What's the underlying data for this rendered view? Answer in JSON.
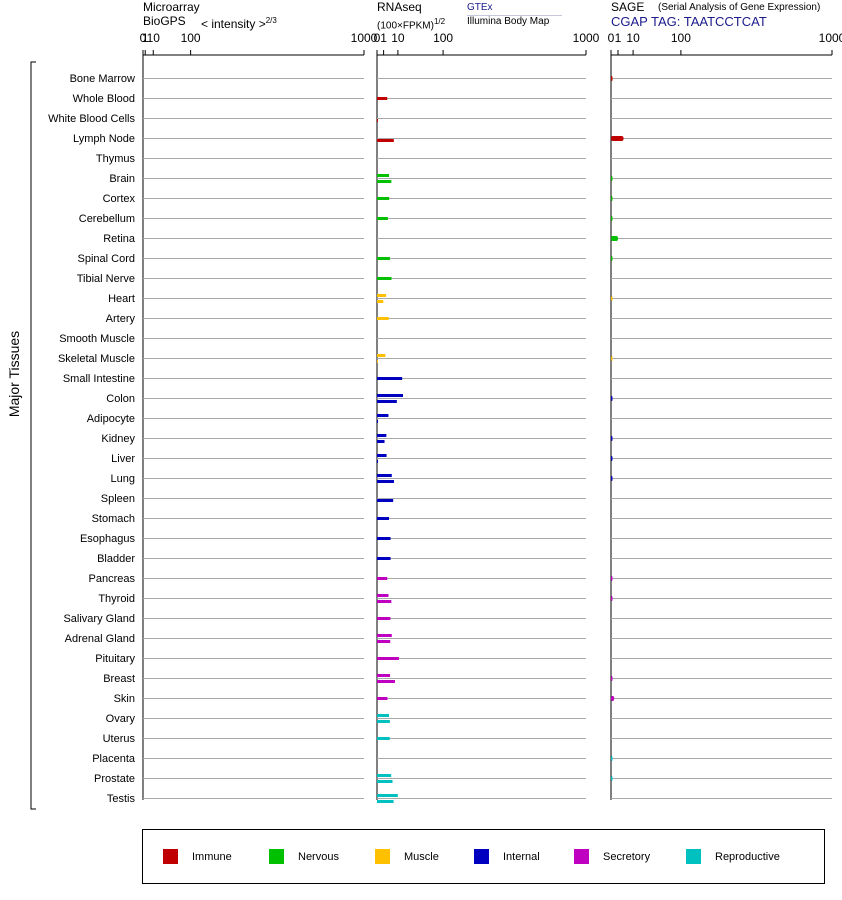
{
  "header": {
    "microarray": {
      "title": "Microarray",
      "source": "BioGPS",
      "unit": "< intensity >",
      "unit_exp": "2/3"
    },
    "rnaseq": {
      "title": "RNAseq",
      "unit": "(100×FPKM)",
      "unit_exp": "1/2",
      "source_primary": "GTEx",
      "source_secondary": "Illumina Body Map"
    },
    "sage": {
      "title": "SAGE",
      "subtitle": "(Serial Analysis of Gene Expression)",
      "tag": "CGAP TAG: TAATCCTCAT"
    }
  },
  "group_label": "Major Tissues",
  "colors": {
    "Immune": "#c00000",
    "Nervous": "#00c000",
    "Muscle": "#ffc000",
    "Internal": "#0000c0",
    "Secretory": "#c000c0",
    "Reproductive": "#00c0c0"
  },
  "legend": [
    {
      "label": "Immune",
      "color": "#c00000"
    },
    {
      "label": "Nervous",
      "color": "#00c000"
    },
    {
      "label": "Muscle",
      "color": "#ffc000"
    },
    {
      "label": "Internal",
      "color": "#0000c0"
    },
    {
      "label": "Secretory",
      "color": "#c000c0"
    },
    {
      "label": "Reproductive",
      "color": "#00c0c0"
    }
  ],
  "chart_data": {
    "type": "bar",
    "orientation": "horizontal",
    "scale": "power",
    "axes": {
      "microarray": {
        "ticks": [
          "0",
          "1",
          "10",
          "100",
          "1000"
        ],
        "xlim": [
          0,
          1000
        ],
        "exponent": 0.6667
      },
      "rnaseq": {
        "ticks": [
          "0",
          "1",
          "10",
          "100",
          "1000"
        ],
        "xlim": [
          0,
          1000
        ],
        "exponent": 0.5
      },
      "sage": {
        "ticks": [
          "0",
          "1",
          "10",
          "100",
          "1000"
        ],
        "xlim": [
          0,
          1000
        ],
        "exponent": 0.5
      }
    },
    "tissues": [
      {
        "name": "Bone Marrow",
        "system": "Immune",
        "rnaseq_gtex": null,
        "rnaseq_ibm": null,
        "sage": 0.02
      },
      {
        "name": "Whole Blood",
        "system": "Immune",
        "rnaseq_gtex": 2.4,
        "rnaseq_ibm": null,
        "sage": null
      },
      {
        "name": "White Blood Cells",
        "system": "Immune",
        "rnaseq_gtex": null,
        "rnaseq_ibm": 0.02,
        "sage": null
      },
      {
        "name": "Lymph Node",
        "system": "Immune",
        "rnaseq_gtex": null,
        "rnaseq_ibm": 6.5,
        "sage": 3.2
      },
      {
        "name": "Thymus",
        "system": "Immune",
        "rnaseq_gtex": null,
        "rnaseq_ibm": null,
        "sage": null
      },
      {
        "name": "Brain",
        "system": "Nervous",
        "rnaseq_gtex": 3.3,
        "rnaseq_ibm": 4.7,
        "sage": 0.02
      },
      {
        "name": "Cortex",
        "system": "Nervous",
        "rnaseq_gtex": 3.4,
        "rnaseq_ibm": null,
        "sage": 0.02
      },
      {
        "name": "Cerebellum",
        "system": "Nervous",
        "rnaseq_gtex": 2.7,
        "rnaseq_ibm": null,
        "sage": 0.02
      },
      {
        "name": "Retina",
        "system": "Nervous",
        "rnaseq_gtex": null,
        "rnaseq_ibm": null,
        "sage": 1.0
      },
      {
        "name": "Spinal Cord",
        "system": "Nervous",
        "rnaseq_gtex": 3.8,
        "rnaseq_ibm": null,
        "sage": 0.02
      },
      {
        "name": "Tibial Nerve",
        "system": "Nervous",
        "rnaseq_gtex": 4.8,
        "rnaseq_ibm": null,
        "sage": null
      },
      {
        "name": "Heart",
        "system": "Muscle",
        "rnaseq_gtex": 1.9,
        "rnaseq_ibm": 0.9,
        "sage": 0.01
      },
      {
        "name": "Artery",
        "system": "Muscle",
        "rnaseq_gtex": 3.1,
        "rnaseq_ibm": null,
        "sage": null
      },
      {
        "name": "Smooth Muscle",
        "system": "Muscle",
        "rnaseq_gtex": null,
        "rnaseq_ibm": null,
        "sage": null
      },
      {
        "name": "Skeletal Muscle",
        "system": "Muscle",
        "rnaseq_gtex": 1.6,
        "rnaseq_ibm": 0.01,
        "sage": 0.01
      },
      {
        "name": "Small Intestine",
        "system": "Internal",
        "rnaseq_gtex": 14.5,
        "rnaseq_ibm": null,
        "sage": null
      },
      {
        "name": "Colon",
        "system": "Internal",
        "rnaseq_gtex": 15.5,
        "rnaseq_ibm": 9.0,
        "sage": 0.04
      },
      {
        "name": "Adipocyte",
        "system": "Internal",
        "rnaseq_gtex": 3.0,
        "rnaseq_ibm": 0.02,
        "sage": null
      },
      {
        "name": "Kidney",
        "system": "Internal",
        "rnaseq_gtex": 2.0,
        "rnaseq_ibm": 1.3,
        "sage": 0.04
      },
      {
        "name": "Liver",
        "system": "Internal",
        "rnaseq_gtex": 2.1,
        "rnaseq_ibm": 0.02,
        "sage": 0.04
      },
      {
        "name": "Lung",
        "system": "Internal",
        "rnaseq_gtex": 5.0,
        "rnaseq_ibm": 6.6,
        "sage": 0.04
      },
      {
        "name": "Spleen",
        "system": "Internal",
        "rnaseq_gtex": null,
        "rnaseq_ibm": 6.0,
        "sage": null
      },
      {
        "name": "Stomach",
        "system": "Internal",
        "rnaseq_gtex": 3.3,
        "rnaseq_ibm": null,
        "sage": null
      },
      {
        "name": "Esophagus",
        "system": "Internal",
        "rnaseq_gtex": 4.2,
        "rnaseq_ibm": null,
        "sage": null
      },
      {
        "name": "Bladder",
        "system": "Internal",
        "rnaseq_gtex": 4.2,
        "rnaseq_ibm": null,
        "sage": null
      },
      {
        "name": "Pancreas",
        "system": "Secretory",
        "rnaseq_gtex": 2.4,
        "rnaseq_ibm": null,
        "sage": 0.04
      },
      {
        "name": "Thyroid",
        "system": "Secretory",
        "rnaseq_gtex": 3.0,
        "rnaseq_ibm": 4.7,
        "sage": 0.04
      },
      {
        "name": "Salivary Gland",
        "system": "Secretory",
        "rnaseq_gtex": 4.1,
        "rnaseq_ibm": null,
        "sage": null
      },
      {
        "name": "Adrenal Gland",
        "system": "Secretory",
        "rnaseq_gtex": 5.0,
        "rnaseq_ibm": 4.0,
        "sage": null
      },
      {
        "name": "Pituitary",
        "system": "Secretory",
        "rnaseq_gtex": 11.0,
        "rnaseq_ibm": null,
        "sage": null
      },
      {
        "name": "Breast",
        "system": "Secretory",
        "rnaseq_gtex": 3.9,
        "rnaseq_ibm": 7.4,
        "sage": 0.02
      },
      {
        "name": "Skin",
        "system": "Secretory",
        "rnaseq_gtex": 2.5,
        "rnaseq_ibm": null,
        "sage": 0.2
      },
      {
        "name": "Ovary",
        "system": "Reproductive",
        "rnaseq_gtex": 3.3,
        "rnaseq_ibm": 3.8,
        "sage": null
      },
      {
        "name": "Uterus",
        "system": "Reproductive",
        "rnaseq_gtex": 3.7,
        "rnaseq_ibm": null,
        "sage": null
      },
      {
        "name": "Placenta",
        "system": "Reproductive",
        "rnaseq_gtex": null,
        "rnaseq_ibm": null,
        "sage": 0.02
      },
      {
        "name": "Prostate",
        "system": "Reproductive",
        "rnaseq_gtex": 4.6,
        "rnaseq_ibm": 5.5,
        "sage": 0.02
      },
      {
        "name": "Testis",
        "system": "Reproductive",
        "rnaseq_gtex": 9.9,
        "rnaseq_ibm": 6.3,
        "sage": null
      }
    ]
  }
}
